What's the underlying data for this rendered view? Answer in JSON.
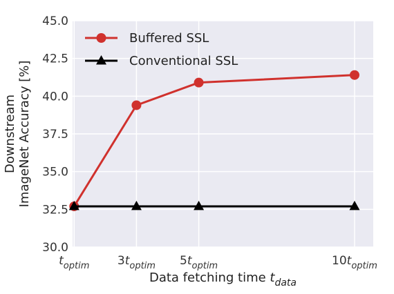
{
  "chart_data": {
    "type": "line",
    "x_positions": [
      1,
      3,
      5,
      10
    ],
    "x_tick_labels": [
      {
        "coef": "",
        "sub": "optim"
      },
      {
        "coef": "3",
        "sub": "optim"
      },
      {
        "coef": "5",
        "sub": "optim"
      },
      {
        "coef": "10",
        "sub": "optim"
      }
    ],
    "xlabel": {
      "text": "Data fetching time ",
      "var": "t",
      "sub": "data"
    },
    "ylabel": [
      "Downstream",
      "ImageNet Accuracy [%]"
    ],
    "ylim": [
      30.0,
      45.0
    ],
    "yticks": [
      "30.0",
      "32.5",
      "35.0",
      "37.5",
      "40.0",
      "42.5",
      "45.0"
    ],
    "grid": true,
    "legend_position": "top-left",
    "series": [
      {
        "name": "Buffered SSL",
        "values": [
          32.7,
          39.4,
          40.9,
          41.4
        ],
        "color": "#d0312d",
        "marker": "circle"
      },
      {
        "name": "Conventional SSL",
        "values": [
          32.7,
          32.7,
          32.7,
          32.7
        ],
        "color": "#000000",
        "marker": "triangle"
      }
    ]
  },
  "colors": {
    "plot_background": "#eaeaf2",
    "grid": "#ffffff"
  }
}
